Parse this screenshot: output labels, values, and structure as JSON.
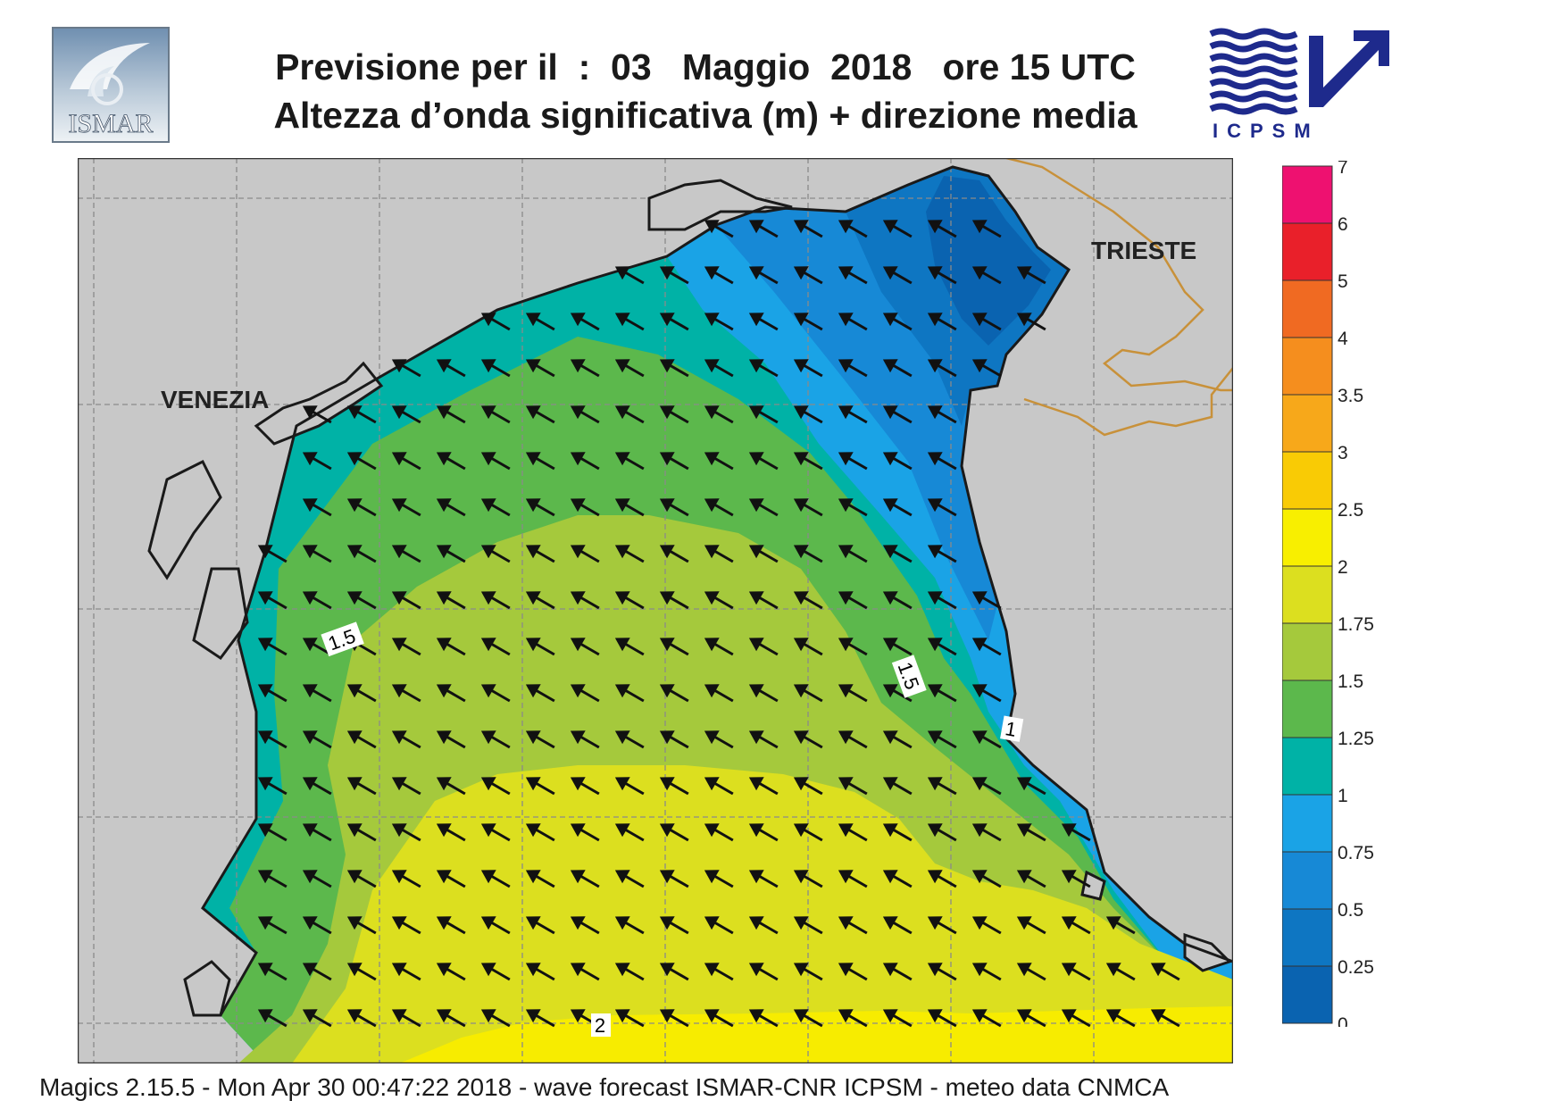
{
  "header": {
    "title_line1": "Previsione per il  :  03   Maggio  2018   ore 15 UTC",
    "title_line2": "Altezza d’onda significativa (m) + direzione media",
    "logo_left_text": "ISMAR",
    "logo_right_text": "ICPSM"
  },
  "map": {
    "city_labels": [
      "VENEZIA",
      "TRIESTE"
    ],
    "contour_labels": [
      "1.5",
      "1.5",
      "1",
      "2"
    ],
    "colors": {
      "land": "#c8c8c8",
      "h_0_25": "#0a63b0",
      "h_0_5": "#0e76c2",
      "h_0_75": "#1789d6",
      "h_1": "#1aa3e6",
      "h_1_25": "#00b2a6",
      "h_1_5": "#5cb84c",
      "h_1_75": "#a5c93c",
      "h_2": "#dcdf1f",
      "h_2_5": "#f7ec00",
      "coast": "#1a1a1a",
      "border": "#c8913a",
      "grid": "#8a8a8a"
    },
    "wave_direction": "north-west"
  },
  "legend": {
    "ticks": [
      "7",
      "6",
      "5",
      "4",
      "3.5",
      "3",
      "2.5",
      "2",
      "1.75",
      "1.5",
      "1.25",
      "1",
      "0.75",
      "0.5",
      "0.25",
      "0"
    ],
    "colors": [
      "#ee1170",
      "#e9202a",
      "#f06a22",
      "#f58e1e",
      "#f7a81a",
      "#f9cb05",
      "#f8ef00",
      "#dcdf1f",
      "#a5c93c",
      "#5cb84c",
      "#00b2a6",
      "#1aa3e6",
      "#1789d6",
      "#0e76c2",
      "#0a63b0"
    ]
  },
  "footer": {
    "text": "Magics 2.15.5 - Mon Apr 30 00:47:22 2018 - wave forecast  ISMAR-CNR  ICPSM - meteo data   CNMCA"
  }
}
